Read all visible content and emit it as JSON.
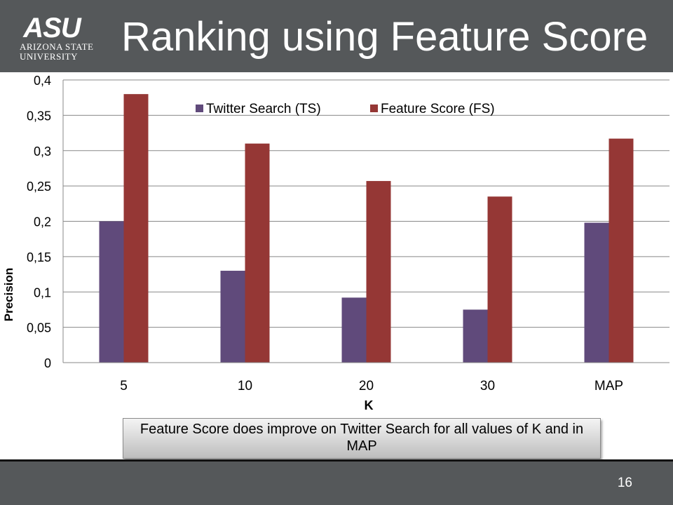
{
  "header": {
    "title": "Ranking using Feature Score",
    "logo": {
      "mark": "ASU",
      "line1": "ARIZONA STATE",
      "line2": "UNIVERSITY"
    }
  },
  "chart_data": {
    "type": "bar",
    "categories": [
      "5",
      "10",
      "20",
      "30",
      "MAP"
    ],
    "series": [
      {
        "name": "Twitter Search (TS)",
        "values": [
          0.2,
          0.13,
          0.092,
          0.075,
          0.198
        ],
        "color": "#604a7b"
      },
      {
        "name": "Feature Score (FS)",
        "values": [
          0.38,
          0.31,
          0.257,
          0.235,
          0.317
        ],
        "color": "#953735"
      }
    ],
    "title": "",
    "xlabel": "K",
    "ylabel": "Precision",
    "ylim": [
      0,
      0.4
    ],
    "yticks": [
      0,
      0.05,
      0.1,
      0.15,
      0.2,
      0.25,
      0.3,
      0.35,
      0.4
    ],
    "ytick_labels": [
      "0",
      "0,05",
      "0,1",
      "0,15",
      "0,2",
      "0,25",
      "0,3",
      "0,35",
      "0,4"
    ],
    "grid": true,
    "legend": "top-center"
  },
  "callout": {
    "text": "Feature Score does improve on Twitter Search for all values of K and in MAP"
  },
  "footer": {
    "page_number": "16"
  }
}
